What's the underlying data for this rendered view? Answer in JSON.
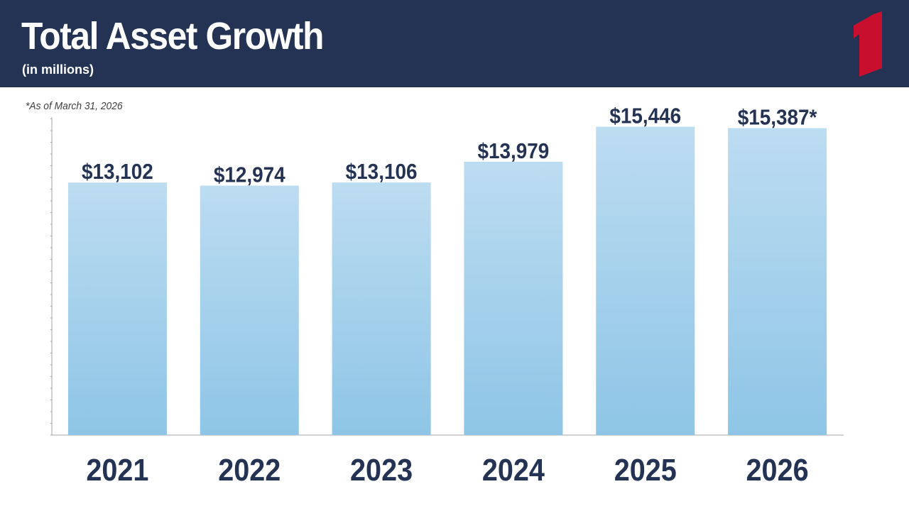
{
  "header": {
    "title": "Total Asset Growth",
    "subtitle": "(in millions)",
    "background": "#243353",
    "logo": "red-numeral-one-logo",
    "logo_color": "#c8102e"
  },
  "footnote": "*As of March 31, 2026",
  "chart_data": {
    "type": "bar",
    "title": "Total Asset Growth",
    "subtitle": "(in millions)",
    "xlabel": "",
    "ylabel": "",
    "categories": [
      "2021",
      "2022",
      "2023",
      "2024",
      "2025",
      "2026"
    ],
    "values": [
      13102,
      12974,
      13106,
      13979,
      15446,
      15387
    ],
    "data_labels": [
      "$13,102",
      "$12,974",
      "$13,106",
      "$13,979",
      "$15,446",
      "$15,387*"
    ],
    "ylim": [
      2500,
      16000
    ],
    "grid": false,
    "legend": "none",
    "bar_color_top": "#bcdcf1",
    "bar_color_bottom": "#8ec5e6",
    "text_color": "#243353"
  }
}
